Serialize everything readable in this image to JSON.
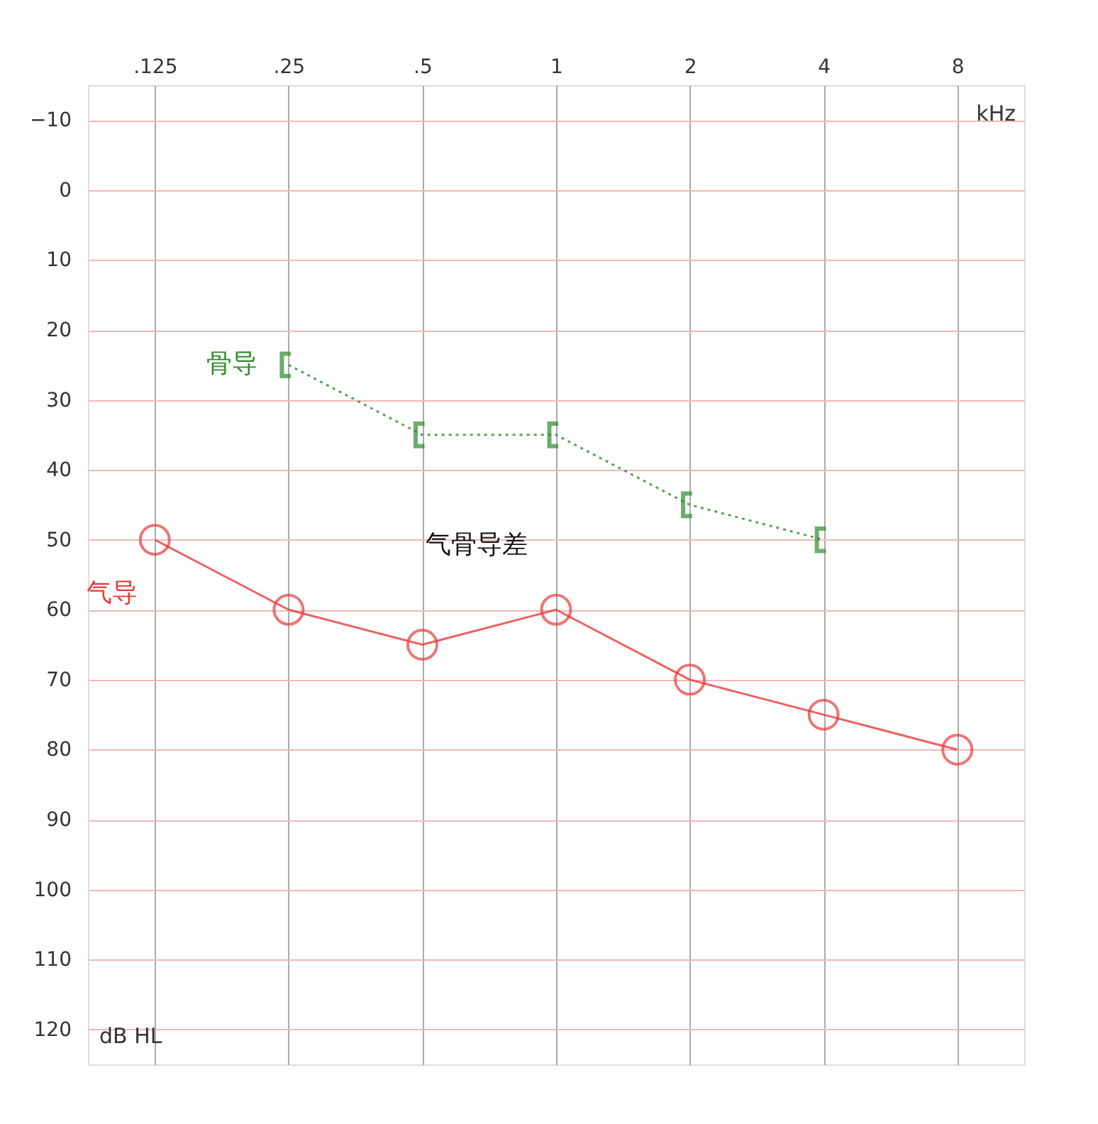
{
  "chart_data": {
    "type": "line",
    "categories": [
      ".125",
      ".25",
      ".5",
      "1",
      "2",
      "4",
      "8"
    ],
    "xlabel": "kHz",
    "ylabel": "dB HL",
    "ylim": [
      125,
      -15
    ],
    "yticks": [
      -10,
      0,
      10,
      20,
      30,
      40,
      50,
      60,
      70,
      80,
      90,
      100,
      110,
      120
    ],
    "series": [
      {
        "name": "气导",
        "color": "#e83a3a",
        "marker": "circle",
        "line_style": "solid",
        "values": [
          50,
          60,
          65,
          60,
          70,
          75,
          80
        ]
      },
      {
        "name": "骨导",
        "color": "#2e8b2e",
        "marker": "cross",
        "line_style": "dotted",
        "values": [
          null,
          25,
          35,
          35,
          45,
          50,
          null
        ]
      }
    ],
    "annotations": [
      "气骨导差"
    ],
    "grid": true
  }
}
